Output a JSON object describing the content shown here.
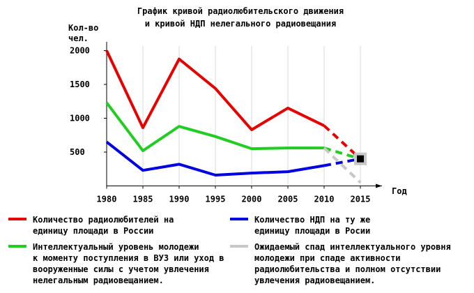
{
  "chart_data": {
    "type": "line",
    "title": "График кривой радиолюбительского движения",
    "subtitle": "и кривой НДП нелегального радиовещания",
    "y_label": "Кол-во\nчел.",
    "x_label": "Год",
    "x": [
      1980,
      1985,
      1990,
      1995,
      2000,
      2005,
      2010,
      2015
    ],
    "xlim": [
      1980,
      2015
    ],
    "xticks": [
      1980,
      1985,
      1990,
      1995,
      2000,
      2005,
      2010,
      2015
    ],
    "ylim": [
      0,
      2000
    ],
    "yticks": [
      500,
      1000,
      1500,
      2000
    ],
    "grid": "x",
    "dashed_from_x": 2010,
    "series": [
      {
        "name": "Количество радиолюбителей на\nединицу площади в России",
        "color": "#e60000",
        "values": [
          2000,
          860,
          1875,
          1440,
          830,
          1150,
          890,
          400
        ]
      },
      {
        "name": "Количество НДП на ту же\nединицу площади в Росии",
        "color": "#0000e0",
        "values": [
          650,
          230,
          320,
          160,
          190,
          210,
          300,
          400
        ]
      },
      {
        "name": "Интеллектуальный уровень молодежи\nк моменту поступления в ВУЗ или уход в\nвооруженные силы с учетом увлечения\nнелегальным радиовещанием.",
        "color": "#22cc22",
        "values": [
          1230,
          520,
          880,
          730,
          550,
          560,
          560,
          400
        ]
      },
      {
        "name": "Ожидаемый спад интеллектуального уровня\nмолодежи при спаде активности\nрадиолюбительства и полном отсутствии\nувлечения радиовещанием.",
        "color": "#c8c8c8",
        "values": [
          null,
          null,
          null,
          null,
          null,
          null,
          560,
          50
        ]
      }
    ],
    "marker": {
      "x": 2015,
      "y": 400
    }
  }
}
